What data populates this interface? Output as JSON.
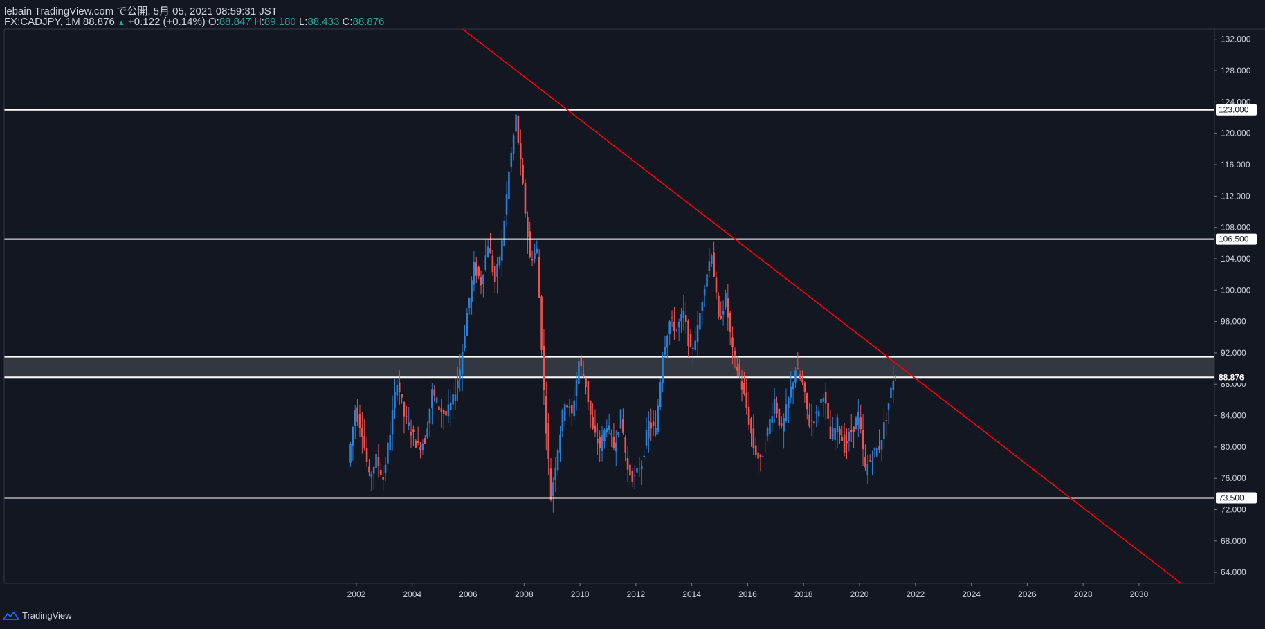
{
  "header": {
    "line1": "lebain TradingView.com で公開, 5月 05, 2021 08:59:31 JST",
    "symbol": "FX:CADJPY, 1M 88.876",
    "change": "+0.122 (+0.14%)",
    "o_label": "O:",
    "o_value": "88.847",
    "h_label": "H:",
    "h_value": "89.180",
    "l_label": "L:",
    "l_value": "88.433",
    "c_label": "C:",
    "c_value": "88.876"
  },
  "footer": {
    "brand": "TradingView"
  },
  "colors": {
    "background": "#131722",
    "up": "#2a7fd6",
    "down": "#ef5350",
    "trendline": "#ff0000",
    "level": "#ffffff",
    "zone": "#3a3d46"
  },
  "chart_data": {
    "type": "candlestick",
    "title": "FX:CADJPY, 1M",
    "x_ticks": [
      "2002",
      "2004",
      "2006",
      "2008",
      "2010",
      "2012",
      "2014",
      "2016",
      "2018",
      "2020",
      "2022",
      "2024",
      "2026",
      "2028",
      "2030"
    ],
    "y_ticks": [
      "64.000",
      "68.000",
      "72.000",
      "76.000",
      "80.000",
      "84.000",
      "88.000",
      "92.000",
      "96.000",
      "100.000",
      "104.000",
      "108.000",
      "112.000",
      "116.000",
      "120.000",
      "124.000",
      "128.000",
      "132.000"
    ],
    "ylim": [
      62.6,
      133.3
    ],
    "xlim": [
      1989.4,
      2032.7
    ],
    "horizontal_levels": [
      {
        "value": 123.0,
        "label": "123.000"
      },
      {
        "value": 106.5,
        "label": "106.500"
      },
      {
        "value": 73.5,
        "label": "73.500"
      }
    ],
    "zone": [
      88.876,
      91.5
    ],
    "last_price": {
      "value": 88.876,
      "label": "88.876"
    },
    "trendline": {
      "p1": [
        2005.8,
        133.3
      ],
      "p2": [
        2031.5,
        62.6
      ]
    },
    "series": [
      {
        "name": "CADJPY",
        "values": [
          [
            2001.75,
            78.0
          ],
          [
            2002.0,
            84.8
          ],
          [
            2002.25,
            82.0
          ],
          [
            2002.5,
            76.0
          ],
          [
            2002.75,
            78.5
          ],
          [
            2003.0,
            76.0
          ],
          [
            2003.25,
            82.0
          ],
          [
            2003.5,
            88.7
          ],
          [
            2003.75,
            84.0
          ],
          [
            2004.0,
            82.0
          ],
          [
            2004.25,
            80.0
          ],
          [
            2004.5,
            81.0
          ],
          [
            2004.75,
            87.0
          ],
          [
            2005.0,
            85.0
          ],
          [
            2005.25,
            84.0
          ],
          [
            2005.5,
            86.0
          ],
          [
            2005.75,
            90.0
          ],
          [
            2006.0,
            97.0
          ],
          [
            2006.25,
            103.0
          ],
          [
            2006.5,
            101.0
          ],
          [
            2006.75,
            106.0
          ],
          [
            2007.0,
            101.0
          ],
          [
            2007.25,
            106.0
          ],
          [
            2007.5,
            115.0
          ],
          [
            2007.75,
            122.0
          ],
          [
            2008.0,
            113.0
          ],
          [
            2008.25,
            104.0
          ],
          [
            2008.5,
            105.0
          ],
          [
            2008.75,
            87.0
          ],
          [
            2009.0,
            73.5
          ],
          [
            2009.25,
            80.0
          ],
          [
            2009.5,
            86.0
          ],
          [
            2009.75,
            84.0
          ],
          [
            2010.0,
            91.0
          ],
          [
            2010.25,
            88.0
          ],
          [
            2010.5,
            82.0
          ],
          [
            2010.75,
            80.0
          ],
          [
            2011.0,
            83.0
          ],
          [
            2011.25,
            80.0
          ],
          [
            2011.5,
            84.0
          ],
          [
            2011.75,
            77.0
          ],
          [
            2012.0,
            76.0
          ],
          [
            2012.25,
            78.0
          ],
          [
            2012.5,
            83.0
          ],
          [
            2012.75,
            82.0
          ],
          [
            2013.0,
            92.0
          ],
          [
            2013.25,
            96.0
          ],
          [
            2013.5,
            95.0
          ],
          [
            2013.75,
            97.0
          ],
          [
            2014.0,
            92.0
          ],
          [
            2014.25,
            95.0
          ],
          [
            2014.5,
            101.0
          ],
          [
            2014.75,
            105.0
          ],
          [
            2015.0,
            96.0
          ],
          [
            2015.25,
            99.0
          ],
          [
            2015.5,
            92.0
          ],
          [
            2015.75,
            89.0
          ],
          [
            2016.0,
            85.0
          ],
          [
            2016.25,
            80.0
          ],
          [
            2016.5,
            78.0
          ],
          [
            2016.75,
            82.0
          ],
          [
            2017.0,
            86.0
          ],
          [
            2017.25,
            82.0
          ],
          [
            2017.5,
            86.0
          ],
          [
            2017.75,
            90.0
          ],
          [
            2018.0,
            88.0
          ],
          [
            2018.25,
            83.0
          ],
          [
            2018.5,
            84.0
          ],
          [
            2018.75,
            87.0
          ],
          [
            2019.0,
            81.0
          ],
          [
            2019.25,
            83.0
          ],
          [
            2019.5,
            80.0
          ],
          [
            2019.75,
            82.0
          ],
          [
            2020.0,
            84.0
          ],
          [
            2020.25,
            77.0
          ],
          [
            2020.5,
            79.0
          ],
          [
            2020.75,
            80.0
          ],
          [
            2021.0,
            84.0
          ],
          [
            2021.25,
            88.8
          ]
        ]
      }
    ]
  }
}
